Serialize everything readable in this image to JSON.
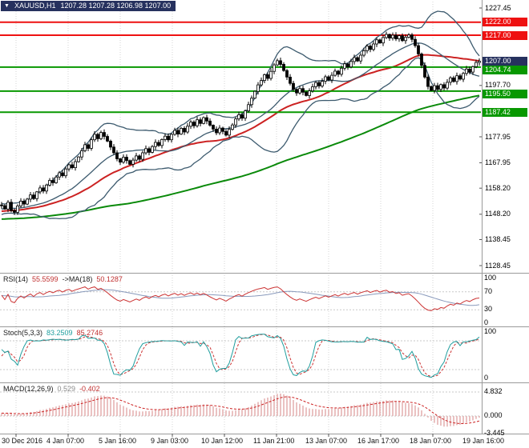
{
  "header": {
    "marker": "▼",
    "title": "XAUUSD,H1",
    "ohlc": "1207.28 1207.28 1206.98 1207.00"
  },
  "colors": {
    "header_bg": "#26315e",
    "price_box": "#26315e",
    "resistance": "#ee1111",
    "support": "#089800",
    "grid": "#d4d4d4",
    "level": "#c8c8c8",
    "bollinger": "#3c5a6e",
    "ma_fast": "#cc2222",
    "ma_slow": "#0a8a0a",
    "candle": "#000000",
    "rsi": "#cc3333",
    "rsi_ma": "#8899bb",
    "stoch_k": "#1f9e9e",
    "stoch_d": "#cc3333",
    "macd_hist": "#e2a8a8",
    "macd_signal": "#cc2222"
  },
  "chart_data": {
    "type": "candlestick",
    "symbol": "XAUUSD",
    "timeframe": "H1",
    "ohlc_display": {
      "open": "1207.28",
      "high": "1207.28",
      "low": "1206.98",
      "close": "1207.00"
    },
    "ylim": [
      1128.45,
      1227.45
    ],
    "x_labels": [
      "30 Dec 2016",
      "4 Jan 07:00",
      "5 Jan 16:00",
      "9 Jan 03:00",
      "10 Jan 12:00",
      "11 Jan 21:00",
      "13 Jan 07:00",
      "16 Jan 17:00",
      "18 Jan 07:00",
      "19 Jan 16:00"
    ],
    "y_axis": [
      {
        "label": "1227.45",
        "price": 1227.45,
        "style": "plain"
      },
      {
        "label": "1222.00",
        "price": 1222.0,
        "style": "red"
      },
      {
        "label": "1217.00",
        "price": 1217.0,
        "style": "red"
      },
      {
        "label": "1207.00",
        "price": 1207.0,
        "style": "dark"
      },
      {
        "label": "1204.74",
        "price": 1204.74,
        "style": "green"
      },
      {
        "label": "1197.70",
        "price": 1197.7,
        "style": "plain"
      },
      {
        "label": "1195.50",
        "price": 1195.5,
        "style": "green"
      },
      {
        "label": "1187.42",
        "price": 1187.42,
        "style": "green"
      },
      {
        "label": "1177.95",
        "price": 1177.95,
        "style": "plain"
      },
      {
        "label": "1167.95",
        "price": 1167.95,
        "style": "plain"
      },
      {
        "label": "1158.20",
        "price": 1158.2,
        "style": "plain"
      },
      {
        "label": "1148.20",
        "price": 1148.2,
        "style": "plain"
      },
      {
        "label": "1138.45",
        "price": 1138.45,
        "style": "plain"
      },
      {
        "label": "1128.45",
        "price": 1128.45,
        "style": "plain"
      }
    ],
    "h_lines": [
      {
        "price": 1222.0,
        "color": "#ee1111",
        "kind": "resistance"
      },
      {
        "price": 1217.0,
        "color": "#ee1111",
        "kind": "resistance"
      },
      {
        "price": 1204.74,
        "color": "#089800",
        "kind": "support"
      },
      {
        "price": 1195.5,
        "color": "#089800",
        "kind": "support"
      },
      {
        "price": 1187.42,
        "color": "#089800",
        "kind": "support"
      }
    ],
    "closes": [
      1151.5,
      1150.2,
      1152.8,
      1149.6,
      1148.9,
      1151.4,
      1153.2,
      1152.1,
      1154.0,
      1155.6,
      1154.2,
      1156.8,
      1158.3,
      1157.1,
      1159.4,
      1161.2,
      1160.3,
      1162.5,
      1164.1,
      1163.0,
      1165.6,
      1167.2,
      1166.1,
      1168.4,
      1170.2,
      1172.6,
      1174.9,
      1173.5,
      1176.8,
      1178.9,
      1177.2,
      1179.6,
      1178.1,
      1176.3,
      1174.0,
      1171.8,
      1169.5,
      1168.2,
      1170.1,
      1168.8,
      1167.4,
      1169.0,
      1170.6,
      1169.3,
      1171.8,
      1173.4,
      1172.0,
      1174.2,
      1175.8,
      1174.6,
      1176.9,
      1178.2,
      1176.8,
      1178.9,
      1180.4,
      1179.0,
      1181.2,
      1179.8,
      1182.0,
      1183.6,
      1182.2,
      1184.5,
      1183.1,
      1185.3,
      1184.0,
      1182.4,
      1180.9,
      1179.5,
      1181.3,
      1180.0,
      1178.6,
      1180.8,
      1182.5,
      1184.8,
      1186.4,
      1185.1,
      1187.9,
      1190.3,
      1192.8,
      1195.4,
      1197.9,
      1199.6,
      1201.8,
      1200.4,
      1203.1,
      1205.6,
      1207.2,
      1205.8,
      1203.4,
      1200.9,
      1198.5,
      1196.2,
      1194.8,
      1196.5,
      1195.1,
      1193.8,
      1195.6,
      1197.2,
      1198.8,
      1197.5,
      1199.3,
      1201.0,
      1199.8,
      1201.6,
      1203.2,
      1202.0,
      1204.3,
      1206.0,
      1204.8,
      1206.9,
      1208.4,
      1207.1,
      1209.3,
      1211.0,
      1212.8,
      1211.5,
      1213.6,
      1215.2,
      1214.0,
      1216.1,
      1217.3,
      1215.9,
      1217.0,
      1215.6,
      1216.8,
      1214.9,
      1216.2,
      1217.1,
      1215.4,
      1213.0,
      1209.8,
      1205.4,
      1200.9,
      1197.3,
      1195.8,
      1197.6,
      1196.2,
      1198.0,
      1196.7,
      1198.9,
      1200.6,
      1199.2,
      1201.4,
      1200.1,
      1202.3,
      1204.0,
      1202.8,
      1204.9,
      1206.5,
      1207.0
    ],
    "indicators": {
      "rsi": {
        "name": "RSI(14)",
        "value": "55.5599",
        "ma_name": "->MA(18)",
        "ma_value": "50.1287",
        "axis": [
          "100",
          "70",
          "30",
          "0"
        ],
        "levels": [
          70,
          30
        ]
      },
      "stoch": {
        "name": "Stoch(5,3,3)",
        "k_value": "83.2509",
        "d_value": "85.2746",
        "axis": [
          "100",
          "0"
        ],
        "levels": [
          80,
          20
        ]
      },
      "macd": {
        "name": "MACD(12,26,9)",
        "value": "0.529",
        "signal_value": "-0.402",
        "axis": [
          "4.832",
          "0.000",
          "-3.445"
        ]
      }
    }
  }
}
